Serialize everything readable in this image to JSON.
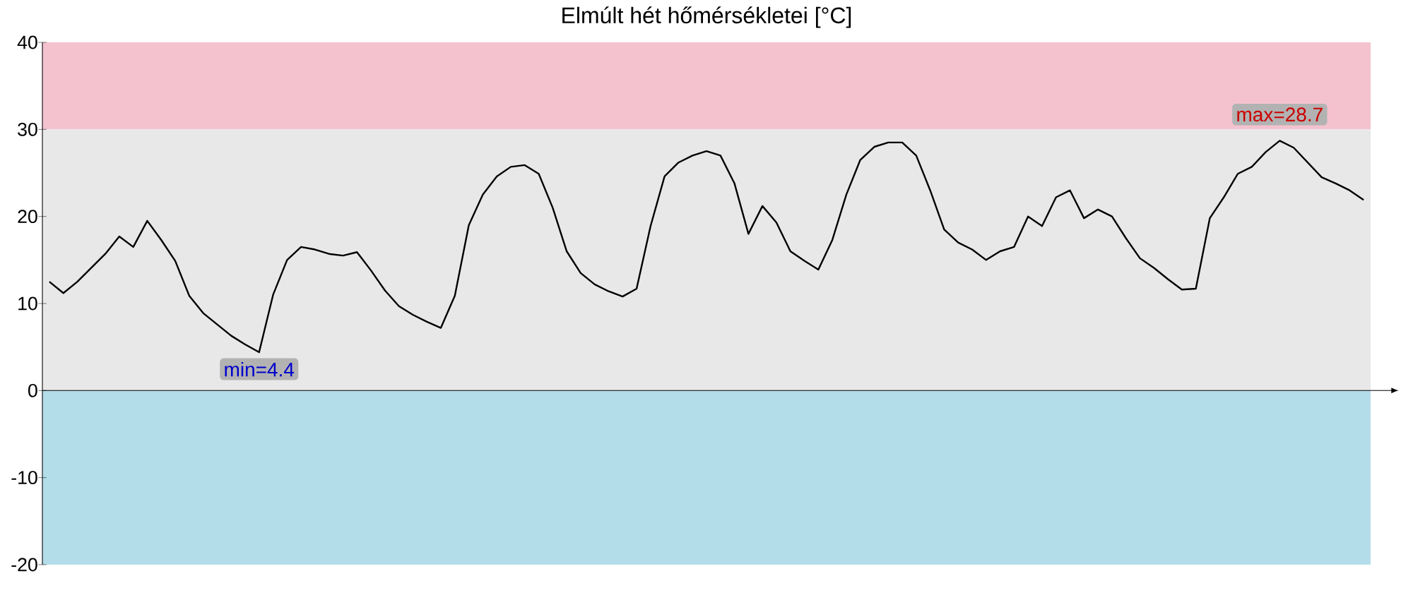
{
  "chart_data": {
    "type": "line",
    "title": "Elmúlt hét hőmérsékletei [°C]",
    "categories": [
      null,
      null,
      null,
      null,
      null,
      null,
      null,
      null,
      null,
      null,
      null,
      null,
      null,
      null,
      null,
      null,
      null,
      null,
      null,
      null,
      null,
      null,
      null,
      null,
      null,
      null,
      null,
      null,
      null,
      null,
      null,
      null,
      null,
      null,
      null,
      null,
      null,
      null,
      null,
      null,
      null,
      null,
      null,
      null,
      null,
      null,
      null,
      null,
      null,
      null,
      null,
      null,
      null,
      null,
      null,
      null,
      null,
      null,
      null,
      null,
      null,
      null,
      null,
      null,
      null,
      null,
      null,
      null,
      null,
      null,
      null,
      null,
      null,
      null,
      null,
      null,
      null,
      null,
      null,
      null,
      null,
      null,
      null,
      null,
      null,
      null,
      null,
      null,
      null,
      null,
      null,
      null,
      null,
      null,
      null
    ],
    "series": [
      {
        "color": "#000000",
        "values": [
          12.5,
          11.2,
          12.5,
          14.1,
          15.7,
          17.7,
          16.5,
          19.5,
          17.3,
          14.9,
          10.9,
          8.9,
          7.6,
          6.3,
          5.3,
          4.4,
          11.0,
          15.0,
          16.5,
          16.2,
          15.7,
          15.5,
          15.9,
          13.8,
          11.5,
          9.7,
          8.7,
          7.9,
          7.2,
          10.9,
          19.0,
          22.5,
          24.6,
          25.7,
          25.9,
          24.9,
          21.0,
          16.0,
          13.5,
          12.2,
          11.4,
          10.8,
          11.7,
          18.9,
          24.6,
          26.2,
          27.0,
          27.5,
          27.0,
          23.8,
          18.0,
          21.2,
          19.3,
          16.0,
          14.9,
          13.9,
          17.3,
          22.5,
          26.5,
          28.0,
          28.5,
          28.5,
          27.0,
          23.0,
          18.5,
          17.0,
          16.2,
          15.0,
          16.0,
          16.5,
          20.0,
          18.9,
          22.2,
          23.0,
          19.8,
          20.8,
          20.0,
          17.5,
          15.2,
          14.1,
          12.8,
          11.6,
          11.7,
          19.8,
          22.2,
          24.9,
          25.7,
          27.4,
          28.7,
          27.9,
          26.2,
          24.5,
          23.8,
          23.0,
          21.9
        ]
      }
    ],
    "ylim": [
      -20,
      40
    ],
    "yticks": [
      -20,
      -10,
      0,
      10,
      20,
      30,
      40
    ],
    "bands": [
      {
        "axis": "y",
        "from": 30,
        "to": 40,
        "color": "#f4c2cf"
      },
      {
        "axis": "y",
        "from": 0,
        "to": 30,
        "color": "#e8e8e8"
      },
      {
        "axis": "y",
        "from": -20,
        "to": 0,
        "color": "#b3dde8"
      }
    ],
    "annotations": [
      {
        "text": "min=4.4",
        "y": 4.4
      },
      {
        "text": "max=28.7",
        "y": 28.7
      }
    ],
    "marker": "none",
    "line_style": "solid"
  }
}
